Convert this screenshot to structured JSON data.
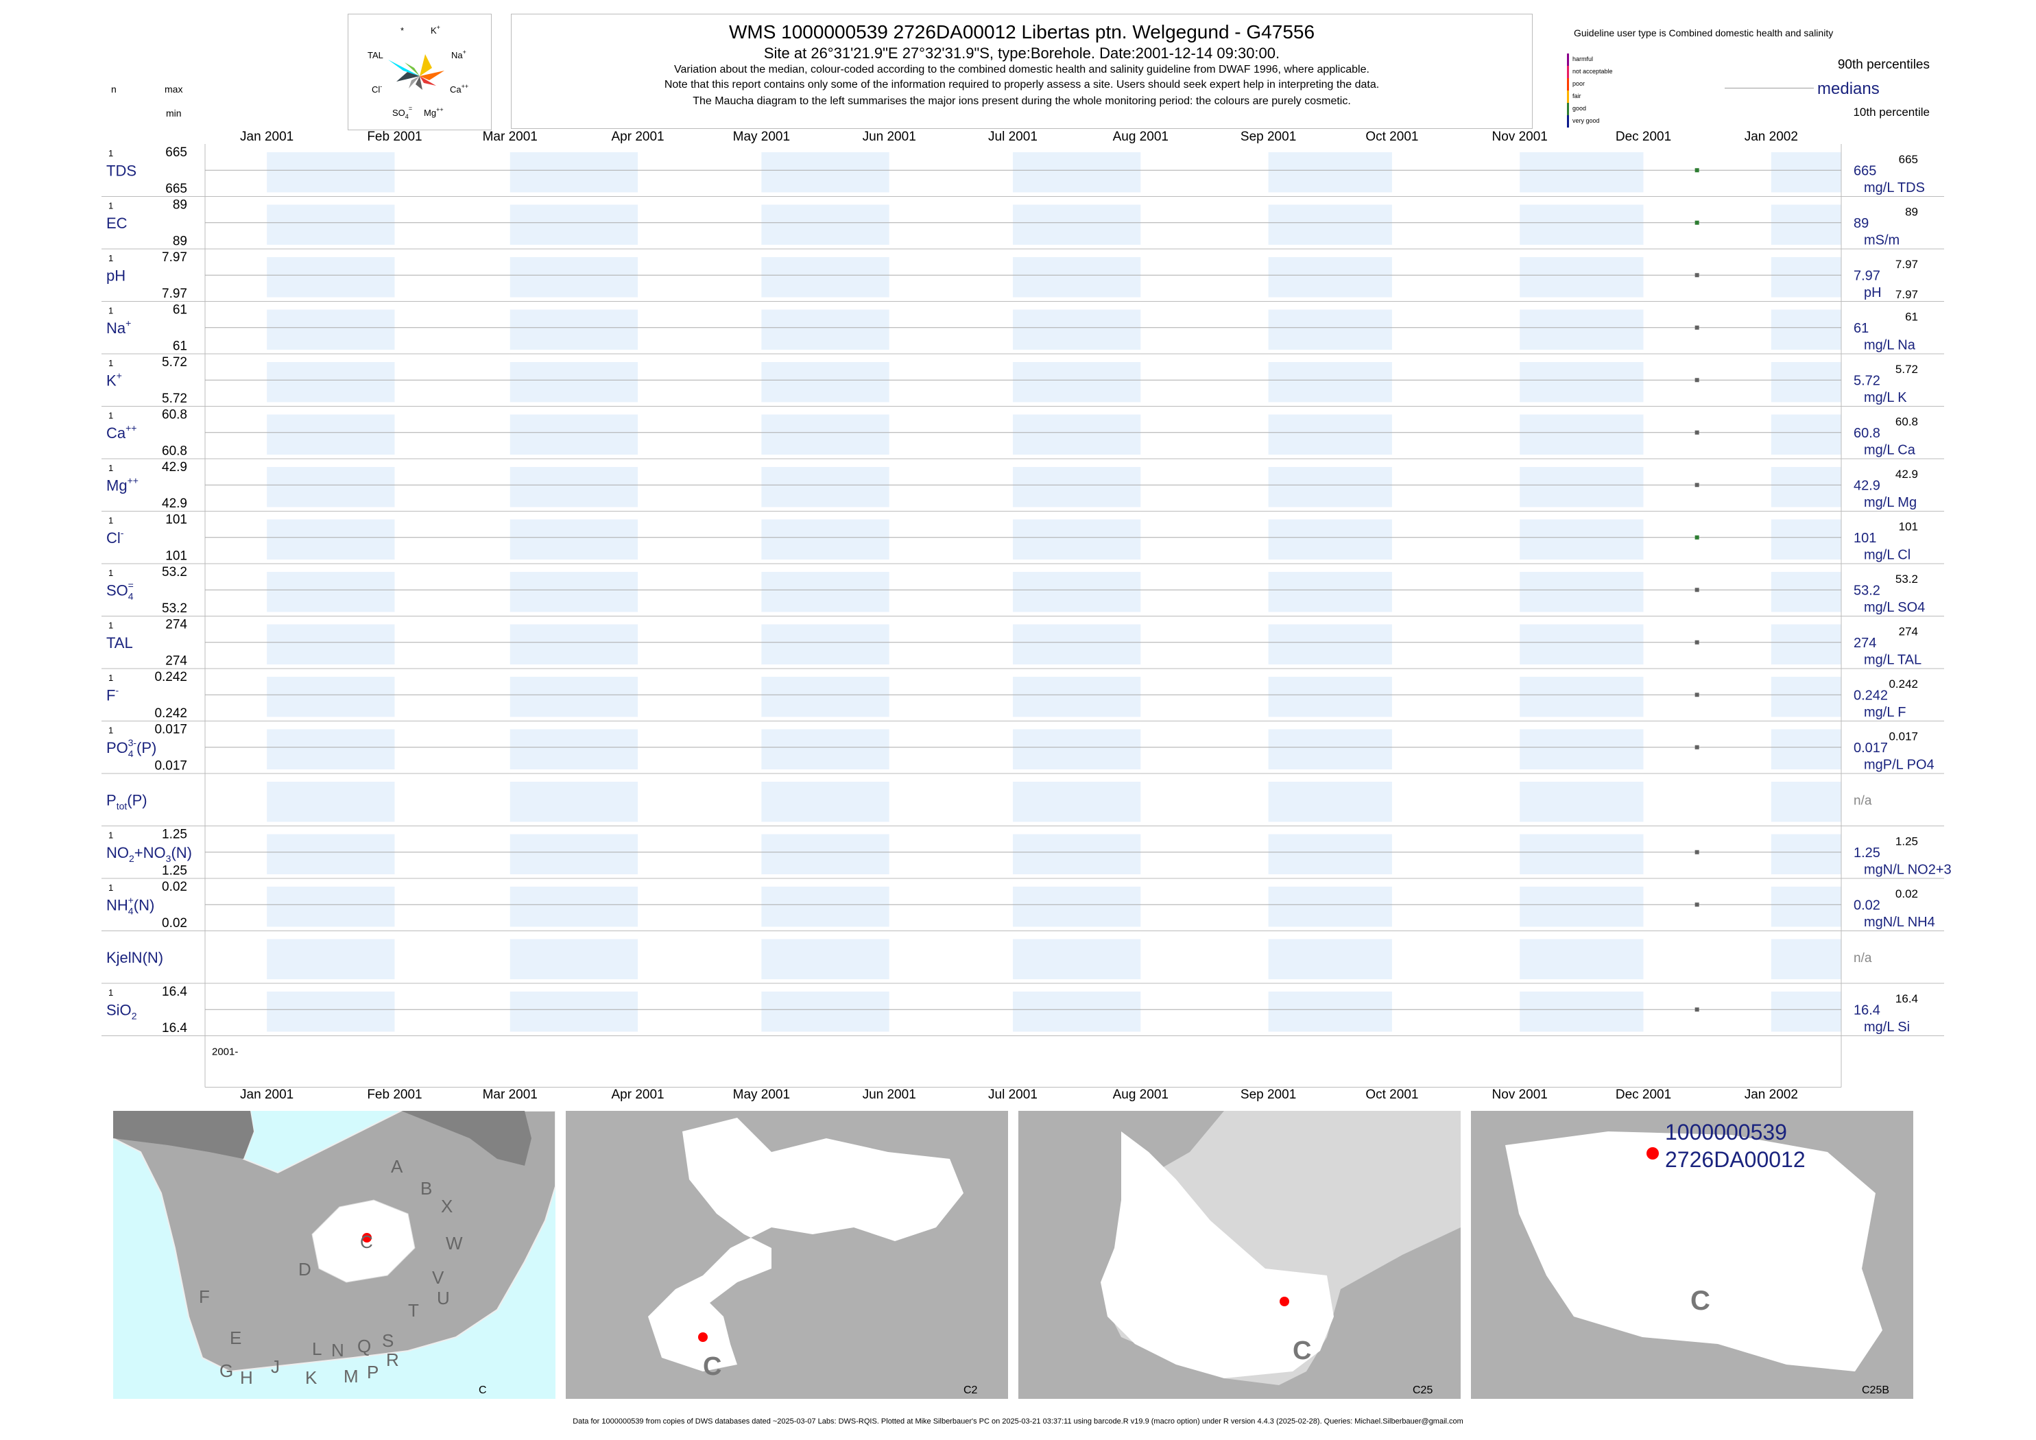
{
  "header": {
    "title": "WMS 1000000539 2726DA00012 Libertas ptn. Welgegund - G47556",
    "site_line": "Site at 26°31'21.9\"E 27°32'31.9\"S, type:Borehole. Date:2001-12-14 09:30:00.",
    "note1": "Variation about the median,  colour-coded according to the combined domestic health and salinity guideline from DWAF 1996, where applicable.",
    "note2": "Note that this report contains only some of the information required to properly assess a site. Users should seek expert help in interpreting the data.",
    "note3": "The Maucha diagram to the left summarises the major ions present during the whole monitoring period: the colours are purely cosmetic."
  },
  "maucha": {
    "labels": [
      "*",
      "K+",
      "Na+",
      "Ca++",
      "Mg++",
      "SO4=",
      "Cl-",
      "TAL"
    ],
    "colors": [
      "#00e5ff",
      "#f5c400",
      "#ff6d00",
      "#e53935",
      "#8e24aa",
      "#9e9e9e",
      "#37474f",
      "#76c442"
    ]
  },
  "legend": {
    "guideline_text": "Guideline user type is Combined domestic health and salinity",
    "levels": [
      {
        "label": "harmful",
        "color": "#8b008b"
      },
      {
        "label": "not acceptable",
        "color": "#e91e63"
      },
      {
        "label": "poor",
        "color": "#ff3d00"
      },
      {
        "label": "fair",
        "color": "#ffb300"
      },
      {
        "label": "good",
        "color": "#2e7d32"
      },
      {
        "label": "very good",
        "color": "#0d1b8c"
      }
    ],
    "p90": "90th percentiles",
    "medians": "medians",
    "p10": "10th percentile"
  },
  "left_header": {
    "n": "n",
    "max": "max",
    "min": "min"
  },
  "chart_data": {
    "type": "scatter",
    "x_axis": {
      "ticks": [
        "Jan 2001",
        "Feb 2001",
        "Mar 2001",
        "Apr 2001",
        "May 2001",
        "Jun 2001",
        "Jul 2001",
        "Aug 2001",
        "Sep 2001",
        "Oct 2001",
        "Nov 2001",
        "Dec 2001",
        "Jan 2002"
      ],
      "range": [
        "2000-12-17",
        "2002-01-18"
      ]
    },
    "sample_date": "2001-12-14",
    "year_label": "2001-",
    "rows": [
      {
        "name": "TDS",
        "sub": "",
        "sup": "",
        "n": "1",
        "max": "665",
        "min": "665",
        "median": "665",
        "p90": "665",
        "p10": "",
        "unit": "mg/L TDS",
        "color": "#2e7d32"
      },
      {
        "name": "EC",
        "sub": "",
        "sup": "",
        "n": "1",
        "max": "89",
        "min": "89",
        "median": "89",
        "p90": "89",
        "p10": "",
        "unit": "mS/m",
        "color": "#2e7d32"
      },
      {
        "name": "pH",
        "sub": "",
        "sup": "",
        "n": "1",
        "max": "7.97",
        "min": "7.97",
        "median": "7.97",
        "p90": "7.97",
        "p10": "7.97",
        "unit": "pH",
        "color": "#616161"
      },
      {
        "name": "Na",
        "sub": "",
        "sup": "+",
        "n": "1",
        "max": "61",
        "min": "61",
        "median": "61",
        "p90": "61",
        "p10": "",
        "unit": "mg/L Na",
        "color": "#616161"
      },
      {
        "name": "K",
        "sub": "",
        "sup": "+",
        "n": "1",
        "max": "5.72",
        "min": "5.72",
        "median": "5.72",
        "p90": "5.72",
        "p10": "",
        "unit": "mg/L K",
        "color": "#616161"
      },
      {
        "name": "Ca",
        "sub": "",
        "sup": "++",
        "n": "1",
        "max": "60.8",
        "min": "60.8",
        "median": "60.8",
        "p90": "60.8",
        "p10": "",
        "unit": "mg/L Ca",
        "color": "#616161"
      },
      {
        "name": "Mg",
        "sub": "",
        "sup": "++",
        "n": "1",
        "max": "42.9",
        "min": "42.9",
        "median": "42.9",
        "p90": "42.9",
        "p10": "",
        "unit": "mg/L Mg",
        "color": "#616161"
      },
      {
        "name": "Cl",
        "sub": "",
        "sup": "-",
        "n": "1",
        "max": "101",
        "min": "101",
        "median": "101",
        "p90": "101",
        "p10": "",
        "unit": "mg/L Cl",
        "color": "#2e7d32"
      },
      {
        "name": "SO",
        "sub": "4",
        "sup": "=",
        "n": "1",
        "max": "53.2",
        "min": "53.2",
        "median": "53.2",
        "p90": "53.2",
        "p10": "",
        "unit": "mg/L SO4",
        "color": "#616161"
      },
      {
        "name": "TAL",
        "sub": "",
        "sup": "",
        "n": "1",
        "max": "274",
        "min": "274",
        "median": "274",
        "p90": "274",
        "p10": "",
        "unit": "mg/L TAL",
        "color": "#616161"
      },
      {
        "name": "F",
        "sub": "",
        "sup": "-",
        "n": "1",
        "max": "0.242",
        "min": "0.242",
        "median": "0.242",
        "p90": "0.242",
        "p10": "",
        "unit": "mg/L F",
        "color": "#616161"
      },
      {
        "name": "PO",
        "sub": "4",
        "sup": "3-",
        "suffix": "(P)",
        "n": "1",
        "max": "0.017",
        "min": "0.017",
        "median": "0.017",
        "p90": "0.017",
        "p10": "",
        "unit": "mgP/L PO4",
        "color": "#616161"
      },
      {
        "name": "P",
        "sub": "tot",
        "sup": "",
        "suffix": "(P)",
        "n": "",
        "max": "",
        "min": "",
        "median": "n/a",
        "p90": "",
        "p10": "",
        "unit": "",
        "color": "#616161"
      },
      {
        "name": "NO2+NO3(N)",
        "sub": "",
        "sup": "",
        "n": "1",
        "max": "1.25",
        "min": "1.25",
        "median": "1.25",
        "p90": "1.25",
        "p10": "",
        "unit": "mgN/L NO2+3",
        "color": "#616161"
      },
      {
        "name": "NH",
        "sub": "4",
        "sup": "+",
        "suffix": "(N)",
        "n": "1",
        "max": "0.02",
        "min": "0.02",
        "median": "0.02",
        "p90": "0.02",
        "p10": "",
        "unit": "mgN/L NH4",
        "color": "#616161"
      },
      {
        "name": "KjelN(N)",
        "sub": "",
        "sup": "",
        "n": "",
        "max": "",
        "min": "",
        "median": "n/a",
        "p90": "",
        "p10": "",
        "unit": "",
        "color": "#616161"
      },
      {
        "name": "SiO",
        "sub": "2",
        "sup": "",
        "n": "1",
        "max": "16.4",
        "min": "16.4",
        "median": "16.4",
        "p90": "16.4",
        "p10": "",
        "unit": "mg/L Si",
        "color": "#616161"
      }
    ]
  },
  "maps": [
    {
      "caption": "C",
      "letters": [
        "A",
        "B",
        "X",
        "W",
        "V",
        "U",
        "T",
        "C",
        "D",
        "F",
        "E",
        "G",
        "H",
        "J",
        "K",
        "L",
        "N",
        "M",
        "P",
        "Q",
        "S",
        "R"
      ],
      "site_label": ""
    },
    {
      "caption": "C2",
      "letters": [
        "C"
      ],
      "site_label": ""
    },
    {
      "caption": "C25",
      "letters": [
        "C"
      ],
      "site_label": ""
    },
    {
      "caption": "C25B",
      "letters": [
        "C"
      ],
      "site_label_1": "1000000539",
      "site_label_2": "2726DA00012"
    }
  ],
  "footer": "Data for 1000000539 from copies of DWS databases dated ~2025-03-07 Labs: DWS-RQIS. Plotted at Mike Silberbauer's PC on 2025-03-21 03:37:11 using barcode.R v19.9 (macro option) under R version 4.4.3 (2025-02-28). Queries: Michael.Silberbauer@gmail.com"
}
